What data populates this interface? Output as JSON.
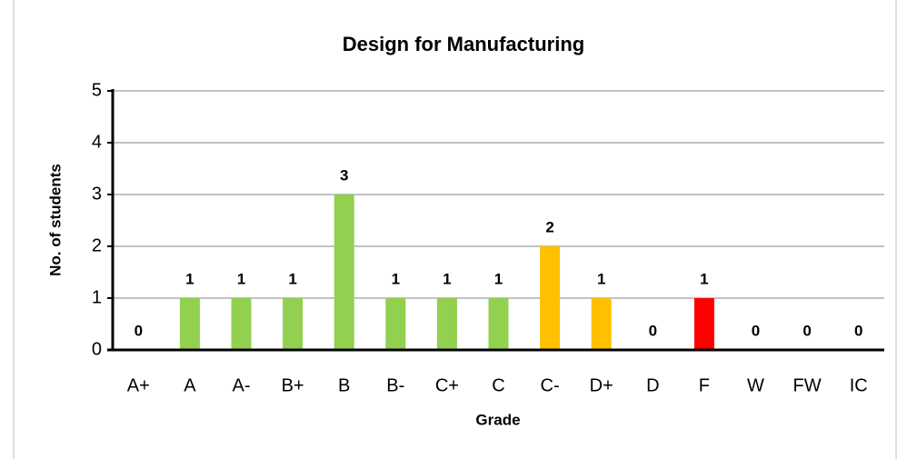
{
  "chart_data": {
    "type": "bar",
    "title": "Design for Manufacturing",
    "x_label": "Grade",
    "y_label": "No. of students",
    "categories": [
      "A+",
      "A",
      "A-",
      "B+",
      "B",
      "B-",
      "C+",
      "C",
      "C-",
      "D+",
      "D",
      "F",
      "W",
      "FW",
      "IC"
    ],
    "values": [
      0,
      1,
      1,
      1,
      3,
      1,
      1,
      1,
      2,
      1,
      0,
      1,
      0,
      0,
      0
    ],
    "colors": [
      "#92d050",
      "#92d050",
      "#92d050",
      "#92d050",
      "#92d050",
      "#92d050",
      "#92d050",
      "#92d050",
      "#ffc000",
      "#ffc000",
      "#ffc000",
      "#ff0000",
      "#ff0000",
      "#ff0000",
      "#ff0000"
    ],
    "ylim": [
      0,
      5
    ],
    "yticks": [
      0,
      1,
      2,
      3,
      4,
      5
    ],
    "grid": true
  }
}
